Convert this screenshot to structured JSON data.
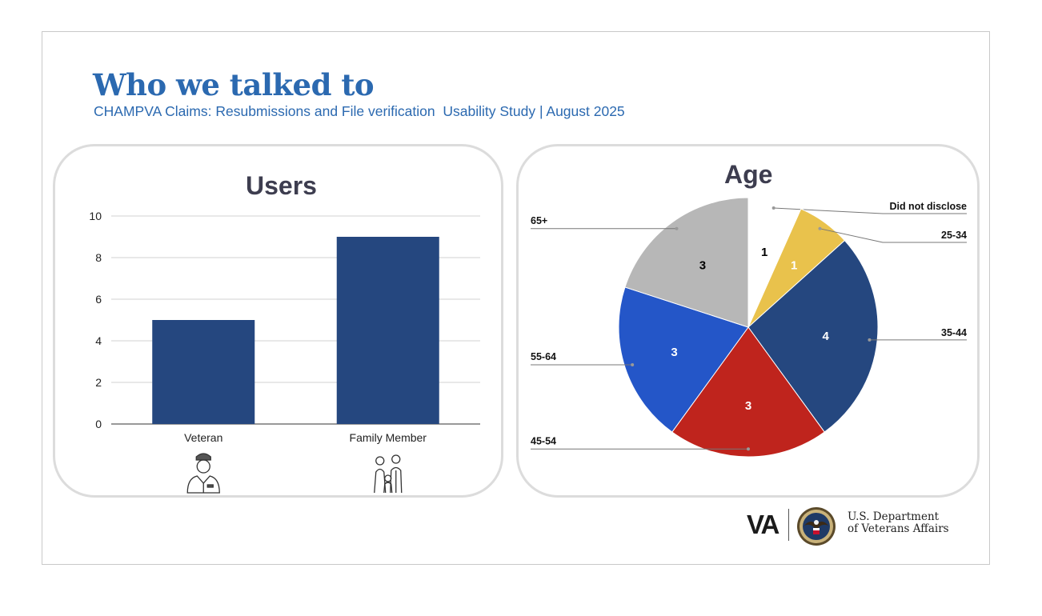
{
  "slide": {
    "title": "Who we talked to",
    "subtitle": "CHAMPVA Claims: Resubmissions and File verification  Usability Study | August 2025"
  },
  "chart_data": [
    {
      "type": "bar",
      "title": "Users",
      "categories": [
        "Veteran",
        "Family Member"
      ],
      "values": [
        5,
        9
      ],
      "ylim": [
        0,
        10
      ],
      "yticks": [
        0,
        2,
        4,
        6,
        8,
        10
      ],
      "grid": true,
      "xlabel": "",
      "ylabel": "",
      "color": "#25477f",
      "category_icons": [
        "veteran-icon",
        "family-icon"
      ]
    },
    {
      "type": "pie",
      "title": "Age",
      "slices": [
        {
          "label": "Did not disclose",
          "value": 1,
          "color": "#ffffff",
          "text_color": "#000000"
        },
        {
          "label": "25-34",
          "value": 1,
          "color": "#e9c24c",
          "text_color": "#ffffff"
        },
        {
          "label": "35-44",
          "value": 4,
          "color": "#25477f",
          "text_color": "#ffffff"
        },
        {
          "label": "45-54",
          "value": 3,
          "color": "#bf241d",
          "text_color": "#ffffff"
        },
        {
          "label": "55-64",
          "value": 3,
          "color": "#2456c8",
          "text_color": "#ffffff"
        },
        {
          "label": "65+",
          "value": 3,
          "color": "#b7b7b7",
          "text_color": "#000000"
        }
      ]
    }
  ],
  "footer": {
    "va_mark": "VA",
    "dept_line1": "U.S. Department",
    "dept_line2": "of Veterans Affairs",
    "seal_icon": "va-seal-icon"
  }
}
